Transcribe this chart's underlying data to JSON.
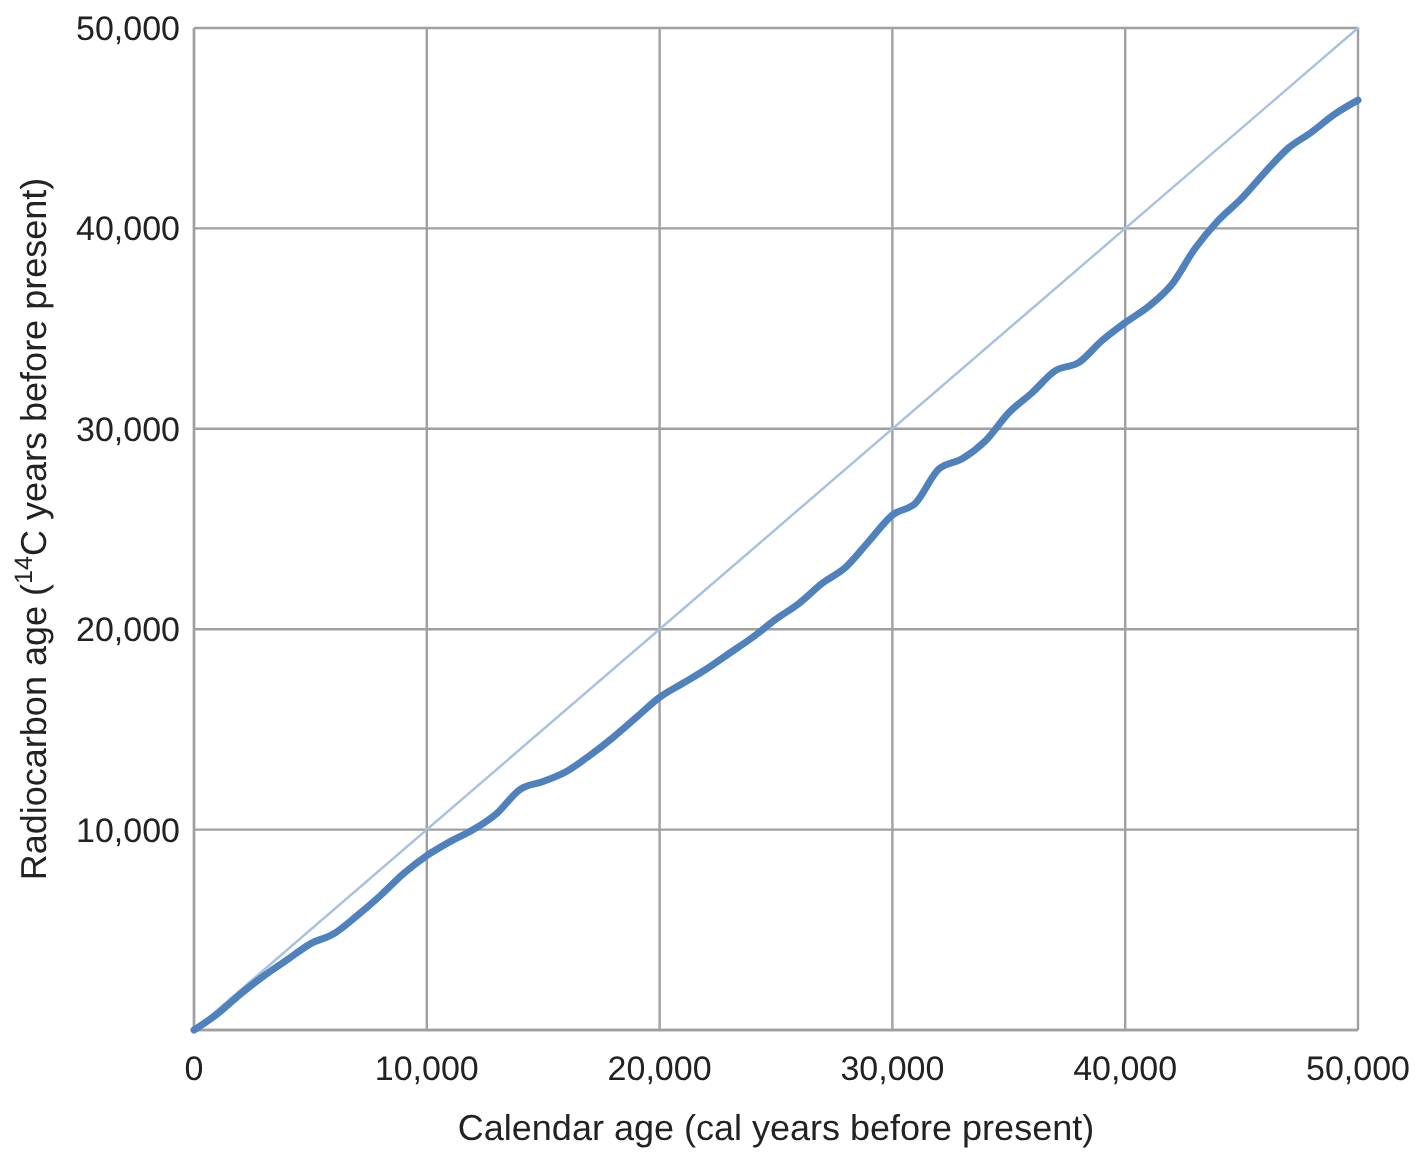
{
  "chart_data": {
    "type": "line",
    "xlabel": "Calendar age (cal years before present)",
    "ylabel": "Radiocarbon age ($^{14}$C years before present)",
    "x": [
      0,
      1000,
      2000,
      3000,
      4000,
      5000,
      6000,
      7000,
      8000,
      9000,
      10000,
      11000,
      12000,
      13000,
      14000,
      15000,
      16000,
      17000,
      18000,
      19000,
      20000,
      21000,
      22000,
      23000,
      24000,
      25000,
      26000,
      27000,
      28000,
      29000,
      30000,
      31000,
      32000,
      33000,
      34000,
      35000,
      36000,
      37000,
      38000,
      39000,
      40000,
      41000,
      42000,
      43000,
      44000,
      45000,
      46000,
      47000,
      48000,
      49000,
      50000
    ],
    "series": [
      {
        "color": "#4f81bd",
        "values": [
          0,
          800,
          1800,
          2700,
          3500,
          4300,
          4800,
          5700,
          6700,
          7800,
          8700,
          9400,
          10000,
          10800,
          12000,
          12400,
          12900,
          13700,
          14600,
          15600,
          16600,
          17300,
          18000,
          18800,
          19600,
          20500,
          21300,
          22300,
          23100,
          24400,
          25700,
          26300,
          28000,
          28500,
          29400,
          30800,
          31800,
          32900,
          33300,
          34400,
          35300,
          36100,
          37200,
          39000,
          40400,
          41500,
          42800,
          44000,
          44800,
          45700,
          46400
        ]
      },
      {
        "color": "#a6c1e2",
        "x": [
          0,
          50000
        ],
        "values": [
          0,
          50000
        ]
      }
    ],
    "xlim": [
      0,
      50000
    ],
    "xticks": [
      0,
      {
        "value": 10000,
        "label": "10,000"
      },
      {
        "value": 20000,
        "label": "20,000"
      },
      {
        "value": 30000,
        "label": "30,000"
      },
      {
        "value": 40000,
        "label": "40,000"
      },
      {
        "value": 50000,
        "label": "50,000"
      }
    ],
    "ylim": [
      0,
      50000
    ],
    "yticks": [
      {
        "value": 0,
        "label": null
      },
      {
        "value": 10000,
        "label": "10,000"
      },
      {
        "value": 20000,
        "label": "20,000"
      },
      {
        "value": 30000,
        "label": "30,000"
      },
      {
        "value": 40000,
        "label": "40,000"
      },
      {
        "value": 50000,
        "label": "50,000"
      }
    ],
    "grid": true
  }
}
